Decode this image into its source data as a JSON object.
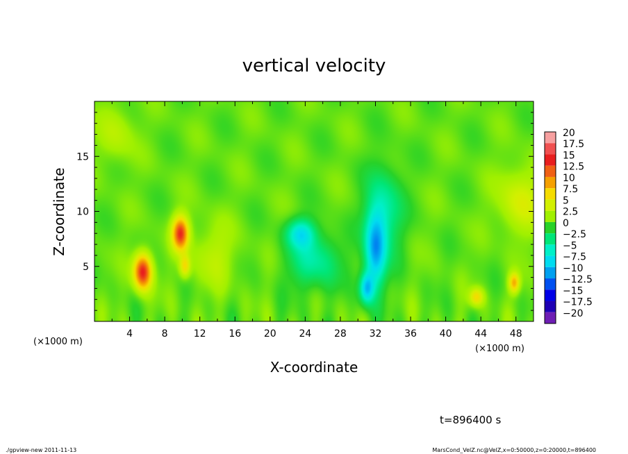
{
  "chart_data": {
    "type": "heatmap",
    "title": "vertical velocity",
    "xlabel": "X-coordinate",
    "ylabel": "Z-coordinate",
    "x_unit_label": "(×1000 m)",
    "y_unit_label": "(×1000 m)",
    "xlim": [
      0,
      50
    ],
    "ylim": [
      0,
      20
    ],
    "x_ticks": [
      4,
      8,
      12,
      16,
      20,
      24,
      28,
      32,
      36,
      40,
      44,
      48
    ],
    "y_ticks": [
      5,
      10,
      15
    ],
    "colorbar": {
      "labels": [
        "20",
        "17.5",
        "15",
        "12.5",
        "10",
        "7.5",
        "5",
        "2.5",
        "0",
        "−2.5",
        "−5",
        "−7.5",
        "−10",
        "−12.5",
        "−15",
        "−17.5",
        "−20"
      ],
      "colors": [
        "#f7a0a0",
        "#f05050",
        "#e81e1e",
        "#f06014",
        "#f5a000",
        "#f5dc00",
        "#d2f000",
        "#a0f000",
        "#28d228",
        "#00e678",
        "#00f0c8",
        "#00dcf0",
        "#00a0f0",
        "#0050f0",
        "#0000e6",
        "#1e00b4",
        "#6e1eb4"
      ]
    },
    "features": [
      {
        "x": 5.5,
        "z": 4.5,
        "w": -2.0,
        "peak": 14,
        "sx": 1.0,
        "sz": 1.6
      },
      {
        "x": 9.8,
        "z": 8.0,
        "w": -2.0,
        "peak": 13,
        "sx": 0.9,
        "sz": 1.5
      },
      {
        "x": 10.3,
        "z": 5.0,
        "w": -2.0,
        "peak": 6,
        "sx": 0.6,
        "sz": 1.0
      },
      {
        "x": 47.8,
        "z": 3.5,
        "w": -2.0,
        "peak": 8,
        "sx": 0.6,
        "sz": 0.9
      },
      {
        "x": 43.5,
        "z": 2.2,
        "w": -2.0,
        "peak": 6,
        "sx": 0.8,
        "sz": 0.8
      },
      {
        "x": 32.0,
        "z": 6.5,
        "w": -2.0,
        "peak": -10,
        "sx": 1.2,
        "sz": 3.5
      },
      {
        "x": 31.0,
        "z": 3.0,
        "w": -2.0,
        "peak": -9,
        "sx": 0.8,
        "sz": 1.4
      },
      {
        "x": 23.5,
        "z": 8.0,
        "w": -2.0,
        "peak": -7,
        "sx": 1.6,
        "sz": 1.3
      },
      {
        "x": 25.0,
        "z": 5.5,
        "w": -2.0,
        "peak": -5,
        "sx": 2.8,
        "sz": 2.5
      },
      {
        "x": 33.0,
        "z": 10.0,
        "w": -2.0,
        "peak": -5,
        "sx": 2.0,
        "sz": 4.0
      },
      {
        "x": 48.5,
        "z": 11.0,
        "w": -2.0,
        "peak": 4,
        "sx": 2.5,
        "sz": 3.0
      },
      {
        "x": 2.5,
        "z": 17.0,
        "w": -2.0,
        "peak": 2.5,
        "sx": 2.0,
        "sz": 2.5
      },
      {
        "x": 13.5,
        "z": 6.0,
        "w": -2.0,
        "peak": 2.5,
        "sx": 2.5,
        "sz": 3.0
      }
    ],
    "time_label": "t=896400 s"
  },
  "footer": {
    "left": "./gpview-new  2011-11-13",
    "right": "MarsCond_VelZ.nc@VelZ,x=0:50000,z=0:20000,t=896400"
  }
}
